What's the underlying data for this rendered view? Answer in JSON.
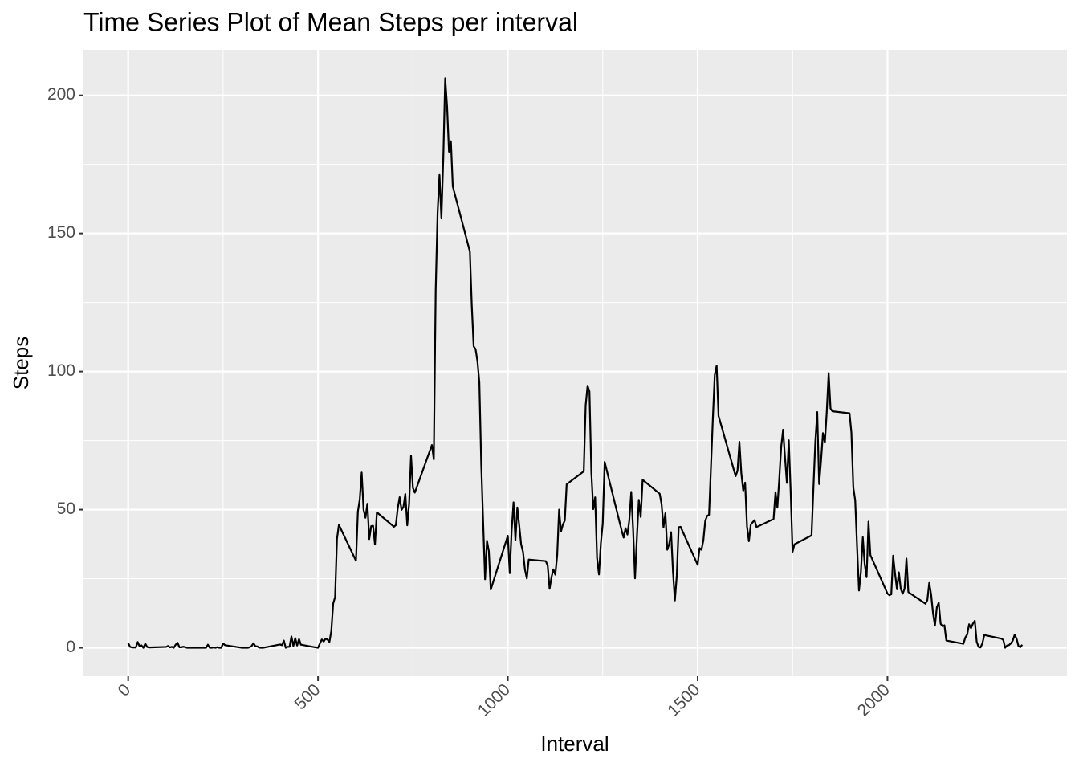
{
  "chart_data": {
    "type": "line",
    "title": "Time Series Plot of Mean Steps per interval",
    "x_label": "Interval",
    "y_label": "Steps",
    "x": [
      0,
      5,
      10,
      15,
      20,
      25,
      30,
      35,
      40,
      45,
      50,
      55,
      100,
      105,
      110,
      115,
      120,
      125,
      130,
      135,
      140,
      145,
      150,
      155,
      200,
      205,
      210,
      215,
      220,
      225,
      230,
      235,
      240,
      245,
      250,
      255,
      300,
      305,
      310,
      315,
      320,
      325,
      330,
      335,
      340,
      345,
      350,
      355,
      400,
      405,
      410,
      415,
      420,
      425,
      430,
      435,
      440,
      445,
      450,
      455,
      500,
      505,
      510,
      515,
      520,
      525,
      530,
      535,
      540,
      545,
      550,
      555,
      600,
      605,
      610,
      615,
      620,
      625,
      630,
      635,
      640,
      645,
      650,
      655,
      700,
      705,
      710,
      715,
      720,
      725,
      730,
      735,
      740,
      745,
      750,
      755,
      800,
      805,
      810,
      815,
      820,
      825,
      830,
      835,
      840,
      845,
      850,
      855,
      900,
      905,
      910,
      915,
      920,
      925,
      930,
      935,
      940,
      945,
      950,
      955,
      1000,
      1005,
      1010,
      1015,
      1020,
      1025,
      1030,
      1035,
      1040,
      1045,
      1050,
      1055,
      1100,
      1105,
      1110,
      1115,
      1120,
      1125,
      1130,
      1135,
      1140,
      1145,
      1150,
      1155,
      1200,
      1205,
      1210,
      1215,
      1220,
      1225,
      1230,
      1235,
      1240,
      1245,
      1250,
      1255,
      1300,
      1305,
      1310,
      1315,
      1320,
      1325,
      1330,
      1335,
      1340,
      1345,
      1350,
      1355,
      1400,
      1405,
      1410,
      1415,
      1420,
      1425,
      1430,
      1435,
      1440,
      1445,
      1450,
      1455,
      1500,
      1505,
      1510,
      1515,
      1520,
      1525,
      1530,
      1535,
      1540,
      1545,
      1550,
      1555,
      1600,
      1605,
      1610,
      1615,
      1620,
      1625,
      1630,
      1635,
      1640,
      1645,
      1650,
      1655,
      1700,
      1705,
      1710,
      1715,
      1720,
      1725,
      1730,
      1735,
      1740,
      1745,
      1750,
      1755,
      1800,
      1805,
      1810,
      1815,
      1820,
      1825,
      1830,
      1835,
      1840,
      1845,
      1850,
      1855,
      1900,
      1905,
      1910,
      1915,
      1920,
      1925,
      1930,
      1935,
      1940,
      1945,
      1950,
      1955,
      2000,
      2005,
      2010,
      2015,
      2020,
      2025,
      2030,
      2035,
      2040,
      2045,
      2050,
      2055,
      2100,
      2105,
      2110,
      2115,
      2120,
      2125,
      2130,
      2135,
      2140,
      2145,
      2150,
      2155,
      2200,
      2205,
      2210,
      2215,
      2220,
      2225,
      2230,
      2235,
      2240,
      2245,
      2250,
      2255,
      2300,
      2305,
      2310,
      2315,
      2320,
      2325,
      2330,
      2335,
      2340,
      2345,
      2350,
      2355
    ],
    "series": [
      {
        "name": "Steps",
        "color": "#000000",
        "values": [
          1.72,
          0.34,
          0.13,
          0.15,
          0.08,
          2.09,
          0.53,
          0.87,
          0,
          1.47,
          0.3,
          0.13,
          0.32,
          0.68,
          0.15,
          0.34,
          0,
          1.11,
          1.83,
          0.17,
          0.17,
          0.38,
          0.26,
          0,
          0,
          0,
          1.13,
          0,
          0,
          0.13,
          0,
          0.23,
          0,
          0,
          1.55,
          0.94,
          0,
          0,
          0,
          0,
          0.21,
          0.62,
          1.62,
          0.58,
          0.49,
          0.08,
          0,
          0,
          1.19,
          0.94,
          2.57,
          0,
          0.34,
          0.36,
          4.11,
          0.66,
          3.49,
          0.83,
          3.11,
          1.11,
          0,
          1.57,
          3,
          2.25,
          3.32,
          2.96,
          2.09,
          6.06,
          16.02,
          18.34,
          39.45,
          44.49,
          31.49,
          49.26,
          53.77,
          63.45,
          49.96,
          47.08,
          52.15,
          39.34,
          44.02,
          44.17,
          37.36,
          49.04,
          43.81,
          44.38,
          50.51,
          54.51,
          49.92,
          50.98,
          55.68,
          44.32,
          52.26,
          69.55,
          57.85,
          56.15,
          73.38,
          68.21,
          129.43,
          157.53,
          171.15,
          155.4,
          177.3,
          206.17,
          195.92,
          179.57,
          183.4,
          167.02,
          143.45,
          124.04,
          109.11,
          108.11,
          103.72,
          95.96,
          66.21,
          45.23,
          24.79,
          38.75,
          34.98,
          21.06,
          40.57,
          26.98,
          42.42,
          52.66,
          38.92,
          50.79,
          44.28,
          37.42,
          34.7,
          28.34,
          25.09,
          31.94,
          31.36,
          29.68,
          21.32,
          25.55,
          28.38,
          26.47,
          33.43,
          49.98,
          42.04,
          44.6,
          46.04,
          59.19,
          63.87,
          87.7,
          94.85,
          92.77,
          63.4,
          50.17,
          54.47,
          32.42,
          26.53,
          37.74,
          45.06,
          67.28,
          42.34,
          39.89,
          43.26,
          40.98,
          46.25,
          56.43,
          42.75,
          25.13,
          39.96,
          53.55,
          47.32,
          60.81,
          55.75,
          51.96,
          43.58,
          48.7,
          35.47,
          37.55,
          41.85,
          27.51,
          17.11,
          26.08,
          43.62,
          43.77,
          30.02,
          36.08,
          35.49,
          38.85,
          45.96,
          47.75,
          48.13,
          65.32,
          82.91,
          98.66,
          102.11,
          83.96,
          62.13,
          64.13,
          74.55,
          63.17,
          56.91,
          59.77,
          43.87,
          38.57,
          44.66,
          45.45,
          46.21,
          43.68,
          46.62,
          56.3,
          50.72,
          61.23,
          72.72,
          78.94,
          68.94,
          59.66,
          75.09,
          56.51,
          34.77,
          37.45,
          40.68,
          58.02,
          74.7,
          85.32,
          59.26,
          67.77,
          77.7,
          74.25,
          85.34,
          99.45,
          86.58,
          85.6,
          84.87,
          77.83,
          58.04,
          53.36,
          36.32,
          20.72,
          27.4,
          40.02,
          30.21,
          25.55,
          45.66,
          33.53,
          19.62,
          19.02,
          19.34,
          33.34,
          26.81,
          21.17,
          27.3,
          21.34,
          19.55,
          21.32,
          32.3,
          20.15,
          15.94,
          17.23,
          23.45,
          19.25,
          12.45,
          8.02,
          14.66,
          16.3,
          8.68,
          7.79,
          8.13,
          2.62,
          1.45,
          3.68,
          4.81,
          8.51,
          7.08,
          8.7,
          9.75,
          2.21,
          0.32,
          0.11,
          1.6,
          4.6,
          3.3,
          2.85,
          0,
          0.83,
          0.96,
          1.58,
          2.6,
          4.7,
          3.3,
          0.64,
          0.23,
          1.08
        ]
      }
    ],
    "xlim": [
      -117.75,
      2472.75
    ],
    "xticks": [
      0,
      500,
      1000,
      1500,
      2000
    ],
    "ylim": [
      -10.31,
      216.48
    ],
    "yticks": [
      0,
      50,
      100,
      150,
      200
    ],
    "grid": true
  }
}
